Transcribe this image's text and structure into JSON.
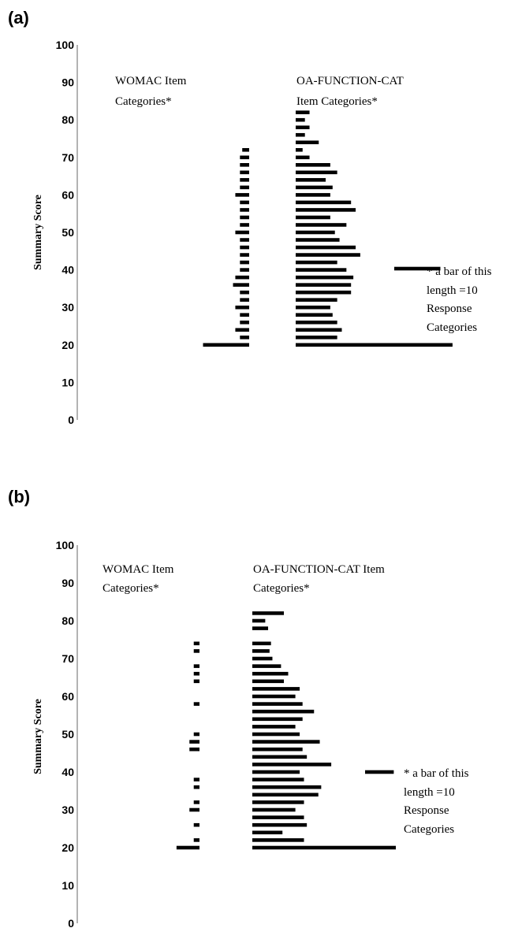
{
  "chart_data": [
    {
      "type": "bar",
      "panel_label": "(a)",
      "ylabel": "Summary Score",
      "ylim": [
        0,
        100
      ],
      "yticks": [
        0,
        10,
        20,
        30,
        40,
        50,
        60,
        70,
        80,
        90,
        100
      ],
      "grid": false,
      "womac_heading": [
        "WOMAC Item",
        "Categories*"
      ],
      "oa_heading": [
        "OA-FUNCTION-CAT",
        "Item Categories*"
      ],
      "scale_note": [
        "* a bar of this",
        "length =10",
        "Response",
        "Categories"
      ],
      "scale_bar_value": 10,
      "series": [
        {
          "name": "WOMAC Item Categories*",
          "scores": [
            72,
            70,
            68,
            66,
            64,
            62,
            60,
            58,
            56,
            54,
            52,
            50,
            48,
            46,
            44,
            42,
            40,
            38,
            36,
            34,
            32,
            30,
            28,
            26,
            24,
            22,
            20
          ],
          "values": [
            1.5,
            2,
            2,
            2,
            2,
            2,
            3,
            2,
            2,
            2,
            2,
            3,
            2,
            2,
            2,
            2,
            2,
            3,
            3.5,
            2,
            2,
            3,
            2,
            2,
            3,
            2,
            10
          ]
        },
        {
          "name": "OA-FUNCTION-CAT Item Categories*",
          "scores": [
            82,
            80,
            78,
            76,
            74,
            72,
            70,
            68,
            66,
            64,
            62,
            60,
            58,
            56,
            54,
            52,
            50,
            48,
            46,
            44,
            42,
            40,
            38,
            36,
            34,
            32,
            30,
            28,
            26,
            24,
            22,
            20
          ],
          "values": [
            3,
            2,
            3,
            2,
            5,
            1.5,
            3,
            7.5,
            9,
            6.5,
            8,
            7.5,
            12,
            13,
            7.5,
            11,
            8.5,
            9.5,
            13,
            14,
            9,
            11,
            12.5,
            12,
            12,
            9,
            7.5,
            8,
            9,
            10,
            9,
            34
          ]
        }
      ]
    },
    {
      "type": "bar",
      "panel_label": "(b)",
      "ylabel": "Summary Score",
      "ylim": [
        0,
        100
      ],
      "yticks": [
        0,
        10,
        20,
        30,
        40,
        50,
        60,
        70,
        80,
        90,
        100
      ],
      "grid": false,
      "womac_heading": [
        "WOMAC Item",
        "Categories*"
      ],
      "oa_heading": [
        "OA-FUNCTION-CAT Item",
        "Categories*"
      ],
      "scale_note": [
        "* a bar of this",
        "length =10",
        "Response",
        "Categories"
      ],
      "scale_bar_value": 10,
      "series": [
        {
          "name": "WOMAC Item Categories*",
          "scores": [
            74,
            72,
            68,
            66,
            64,
            58,
            50,
            48,
            46,
            38,
            36,
            32,
            30,
            26,
            22,
            20
          ],
          "values": [
            2,
            2,
            2,
            2,
            2,
            2,
            2,
            3.5,
            3.5,
            2,
            2,
            2,
            3.5,
            2,
            2,
            8
          ]
        },
        {
          "name": "OA-FUNCTION-CAT Item Categories*",
          "scores": [
            82,
            80,
            78,
            74,
            72,
            70,
            68,
            66,
            64,
            62,
            60,
            58,
            56,
            54,
            52,
            50,
            48,
            46,
            44,
            42,
            40,
            38,
            36,
            34,
            32,
            30,
            28,
            26,
            24,
            22,
            20
          ],
          "values": [
            11,
            4.5,
            5.5,
            6.5,
            6,
            7,
            10,
            12.5,
            11,
            16.5,
            15,
            17.5,
            21.5,
            17.5,
            15,
            16.5,
            23.5,
            17.5,
            19,
            27.5,
            16.5,
            18,
            24,
            23,
            18,
            15,
            18,
            19,
            10.5,
            18,
            50
          ]
        }
      ]
    }
  ]
}
